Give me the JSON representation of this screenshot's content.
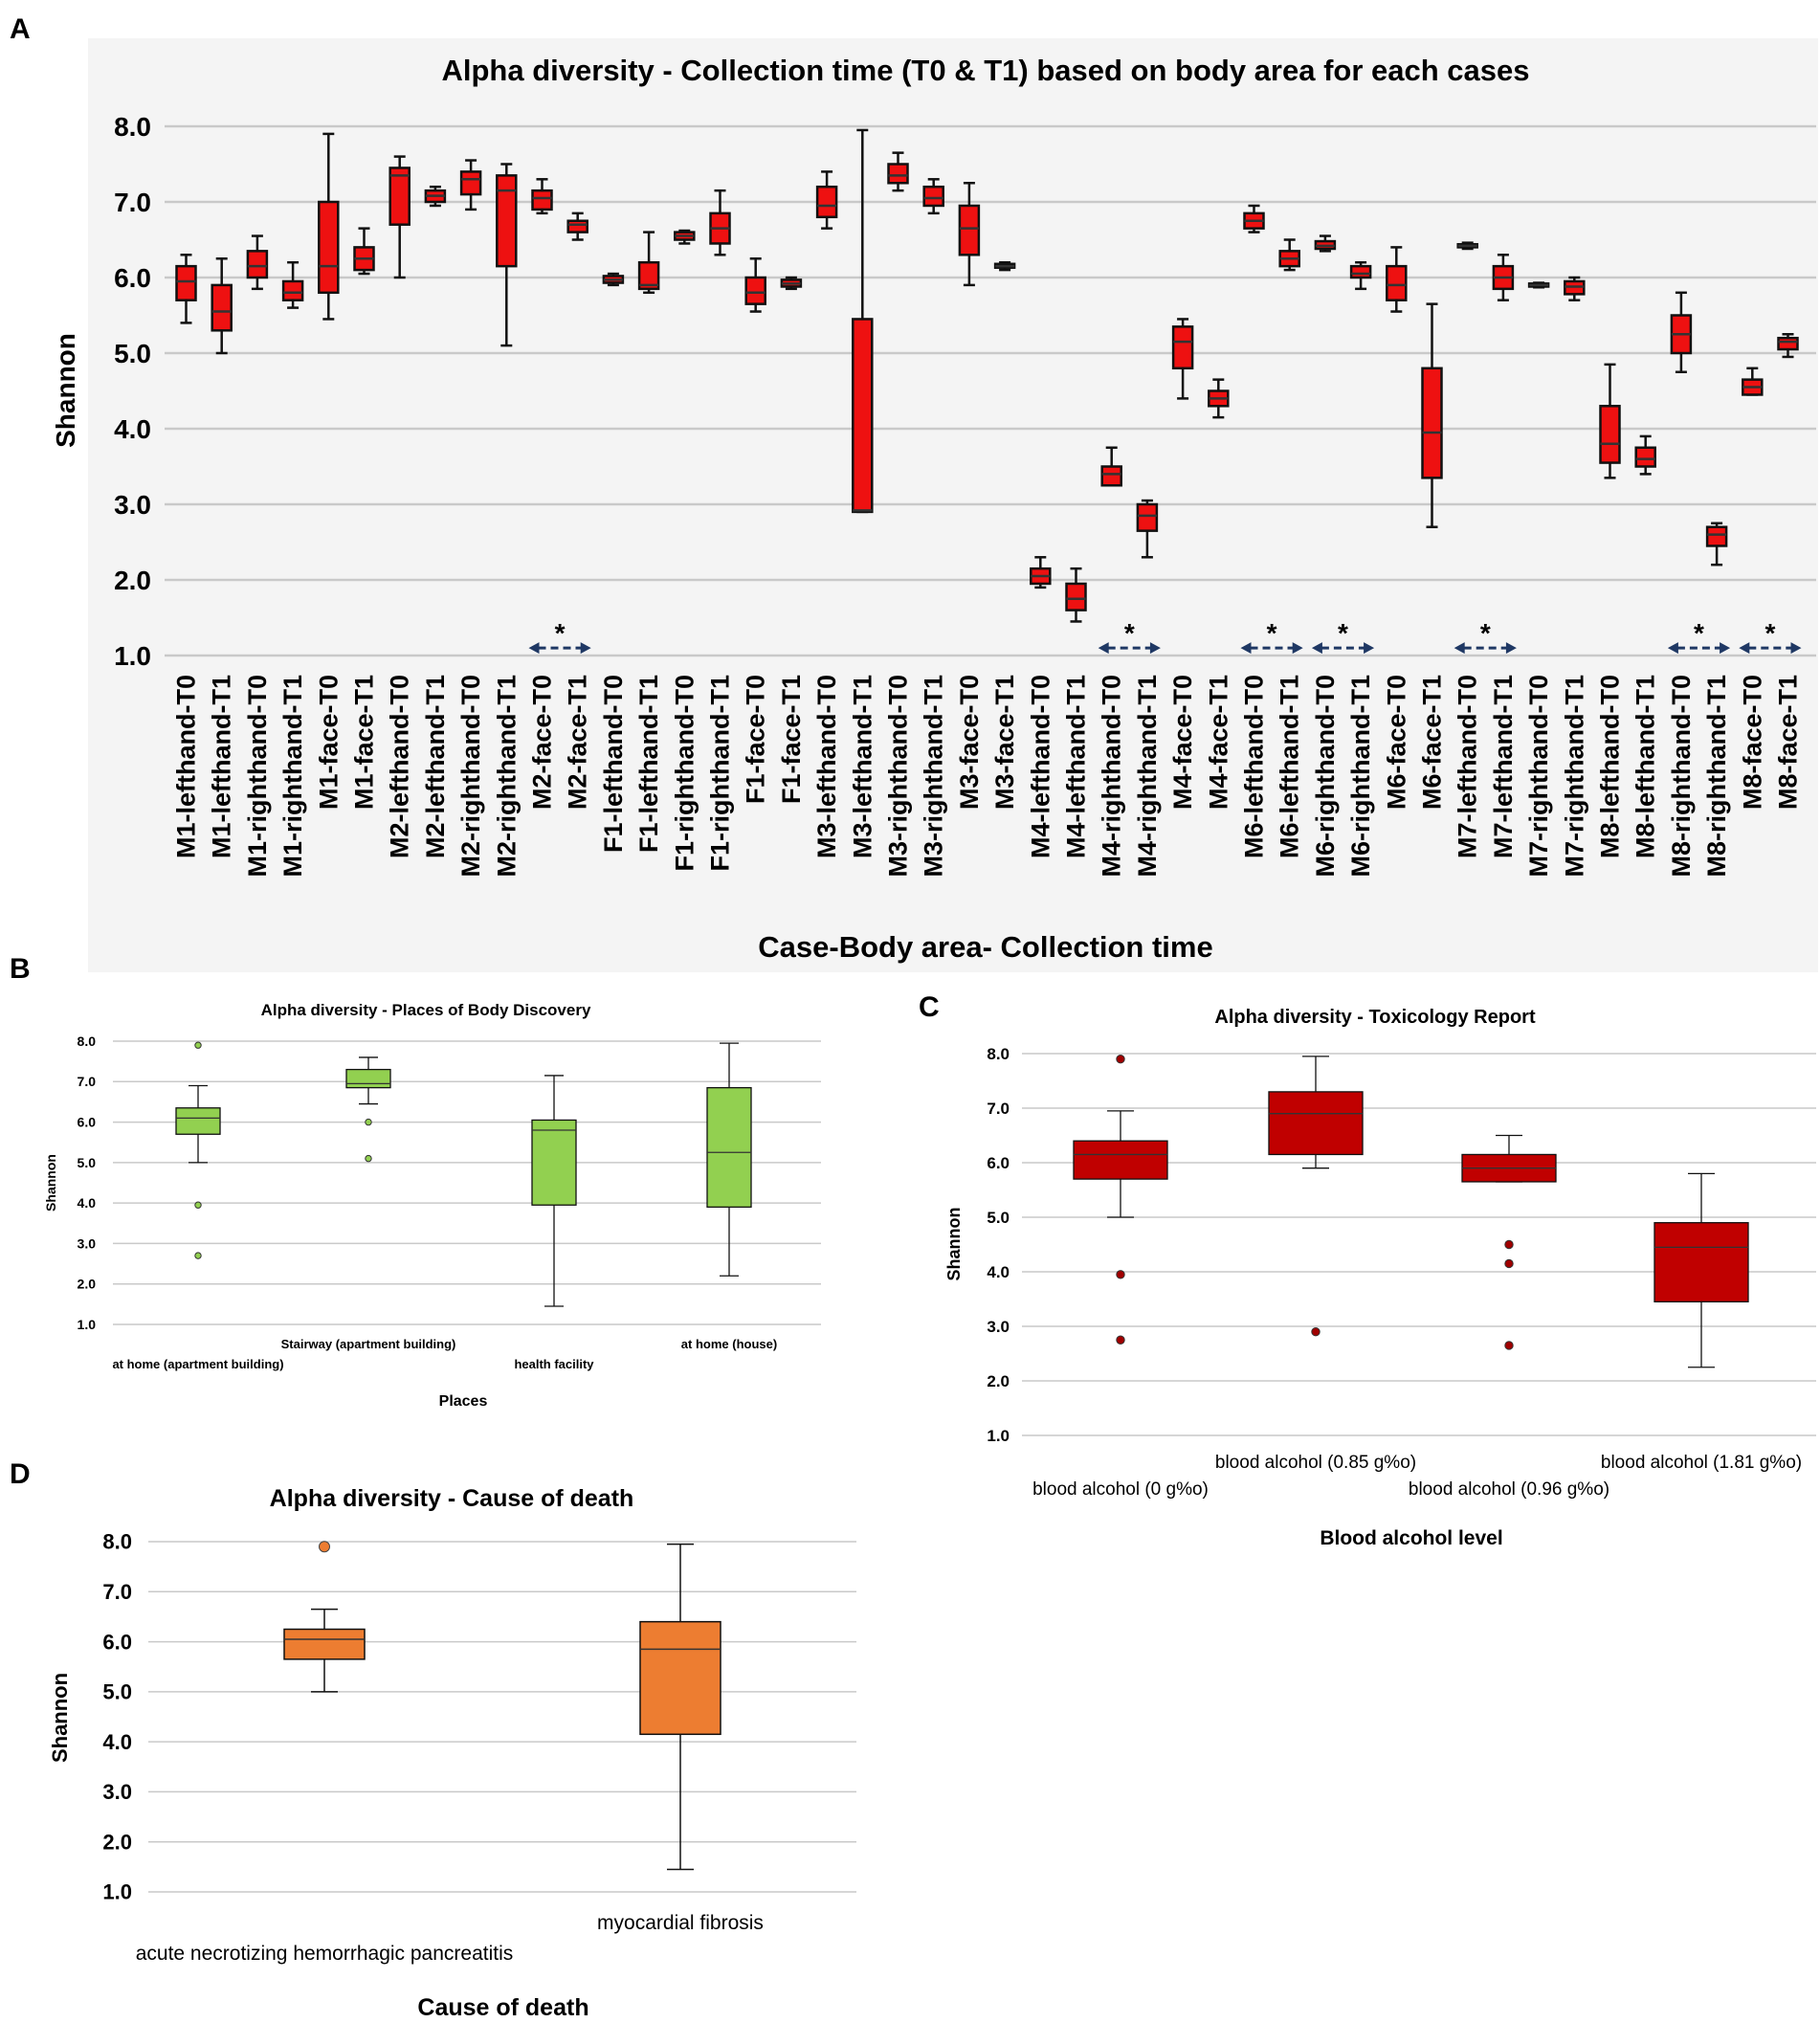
{
  "colors": {
    "panel_a_box": "#ee1111",
    "panel_b_box": "#92d050",
    "panel_c_box": "#c00000",
    "panel_d_box": "#ed7d31",
    "outlier_a_c": "#a00000",
    "outlier_b": "#92d050",
    "outlier_d": "#ed7d31",
    "grid": "#c9c9c9",
    "arrow": "#1f3864",
    "panel_a_bg": "#f4f4f4"
  },
  "chart_data": [
    {
      "panel": "A",
      "type": "box",
      "title": "Alpha diversity - Collection time (T0 & T1) based on body area for each cases",
      "xlabel": "Case-Body area- Collection time",
      "ylabel": "Shannon",
      "ylim": [
        1.0,
        8.0
      ],
      "yticks": [
        "1.0",
        "2.0",
        "3.0",
        "4.0",
        "5.0",
        "6.0",
        "7.0",
        "8.0"
      ],
      "significance_marker": "*",
      "significance_pairs": [
        [
          "M2-face-T0",
          "M2-face-T1"
        ],
        [
          "M4-righthand-T0",
          "M4-righthand-T1"
        ],
        [
          "M6-lefthand-T0",
          "M6-lefthand-T1"
        ],
        [
          "M6-righthand-T0",
          "M6-righthand-T1"
        ],
        [
          "M7-lefthand-T0",
          "M7-lefthand-T1"
        ],
        [
          "M8-righthand-T0",
          "M8-righthand-T1"
        ],
        [
          "M8-face-T0",
          "M8-face-T1"
        ]
      ],
      "boxes": [
        {
          "label": "M1-lefthand-T0",
          "min": 5.4,
          "q1": 5.7,
          "median": 5.95,
          "q3": 6.15,
          "max": 6.3
        },
        {
          "label": "M1-lefthand-T1",
          "min": 5.0,
          "q1": 5.3,
          "median": 5.55,
          "q3": 5.9,
          "max": 6.25
        },
        {
          "label": "M1-righthand-T0",
          "min": 5.85,
          "q1": 6.0,
          "median": 6.15,
          "q3": 6.35,
          "max": 6.55
        },
        {
          "label": "M1-righthand-T1",
          "min": 5.6,
          "q1": 5.7,
          "median": 5.8,
          "q3": 5.95,
          "max": 6.2
        },
        {
          "label": "M1-face-T0",
          "min": 5.45,
          "q1": 5.8,
          "median": 6.15,
          "q3": 7.0,
          "max": 7.9
        },
        {
          "label": "M1-face-T1",
          "min": 6.05,
          "q1": 6.1,
          "median": 6.25,
          "q3": 6.4,
          "max": 6.65
        },
        {
          "label": "M2-lefthand-T0",
          "min": 6.0,
          "q1": 6.7,
          "median": 7.35,
          "q3": 7.45,
          "max": 7.6
        },
        {
          "label": "M2-lefthand-T1",
          "min": 6.95,
          "q1": 7.0,
          "median": 7.08,
          "q3": 7.15,
          "max": 7.2
        },
        {
          "label": "M2-righthand-T0",
          "min": 6.9,
          "q1": 7.1,
          "median": 7.3,
          "q3": 7.4,
          "max": 7.55
        },
        {
          "label": "M2-righthand-T1",
          "min": 5.1,
          "q1": 6.15,
          "median": 7.15,
          "q3": 7.35,
          "max": 7.5
        },
        {
          "label": "M2-face-T0",
          "min": 6.85,
          "q1": 6.9,
          "median": 7.05,
          "q3": 7.15,
          "max": 7.3
        },
        {
          "label": "M2-face-T1",
          "min": 6.5,
          "q1": 6.6,
          "median": 6.7,
          "q3": 6.75,
          "max": 6.85
        },
        {
          "label": "F1-lefthand-T0",
          "min": 5.9,
          "q1": 5.93,
          "median": 5.97,
          "q3": 6.02,
          "max": 6.05
        },
        {
          "label": "F1-lefthand-T1",
          "min": 5.8,
          "q1": 5.85,
          "median": 5.9,
          "q3": 6.2,
          "max": 6.6
        },
        {
          "label": "F1-righthand-T0",
          "min": 6.45,
          "q1": 6.5,
          "median": 6.55,
          "q3": 6.6,
          "max": 6.62
        },
        {
          "label": "F1-righthand-T1",
          "min": 6.3,
          "q1": 6.45,
          "median": 6.65,
          "q3": 6.85,
          "max": 7.15
        },
        {
          "label": "F1-face-T0",
          "min": 5.55,
          "q1": 5.65,
          "median": 5.8,
          "q3": 6.0,
          "max": 6.25
        },
        {
          "label": "F1-face-T1",
          "min": 5.85,
          "q1": 5.88,
          "median": 5.92,
          "q3": 5.97,
          "max": 6.0
        },
        {
          "label": "M3-lefthand-T0",
          "min": 6.65,
          "q1": 6.8,
          "median": 6.95,
          "q3": 7.2,
          "max": 7.4
        },
        {
          "label": "M3-lefthand-T1",
          "min": 2.9,
          "q1": 2.9,
          "median": 2.92,
          "q3": 5.45,
          "max": 7.95
        },
        {
          "label": "M3-righthand-T0",
          "min": 7.15,
          "q1": 7.25,
          "median": 7.35,
          "q3": 7.5,
          "max": 7.65
        },
        {
          "label": "M3-righthand-T1",
          "min": 6.85,
          "q1": 6.95,
          "median": 7.05,
          "q3": 7.2,
          "max": 7.3
        },
        {
          "label": "M3-face-T0",
          "min": 5.9,
          "q1": 6.3,
          "median": 6.65,
          "q3": 6.95,
          "max": 7.25
        },
        {
          "label": "M3-face-T1",
          "min": 6.1,
          "q1": 6.13,
          "median": 6.15,
          "q3": 6.18,
          "max": 6.2
        },
        {
          "label": "M4-lefthand-T0",
          "min": 1.9,
          "q1": 1.95,
          "median": 2.05,
          "q3": 2.15,
          "max": 2.3
        },
        {
          "label": "M4-lefthand-T1",
          "min": 1.45,
          "q1": 1.6,
          "median": 1.75,
          "q3": 1.95,
          "max": 2.15
        },
        {
          "label": "M4-righthand-T0",
          "min": 3.25,
          "q1": 3.25,
          "median": 3.4,
          "q3": 3.5,
          "max": 3.75
        },
        {
          "label": "M4-righthand-T1",
          "min": 2.3,
          "q1": 2.65,
          "median": 2.85,
          "q3": 3.0,
          "max": 3.05
        },
        {
          "label": "M4-face-T0",
          "min": 4.4,
          "q1": 4.8,
          "median": 5.15,
          "q3": 5.35,
          "max": 5.45
        },
        {
          "label": "M4-face-T1",
          "min": 4.15,
          "q1": 4.3,
          "median": 4.4,
          "q3": 4.5,
          "max": 4.65
        },
        {
          "label": "M6-lefthand-T0",
          "min": 6.6,
          "q1": 6.65,
          "median": 6.75,
          "q3": 6.85,
          "max": 6.95
        },
        {
          "label": "M6-lefthand-T1",
          "min": 6.1,
          "q1": 6.15,
          "median": 6.25,
          "q3": 6.35,
          "max": 6.5
        },
        {
          "label": "M6-righthand-T0",
          "min": 6.35,
          "q1": 6.38,
          "median": 6.42,
          "q3": 6.48,
          "max": 6.55
        },
        {
          "label": "M6-righthand-T1",
          "min": 5.85,
          "q1": 6.0,
          "median": 6.05,
          "q3": 6.15,
          "max": 6.2
        },
        {
          "label": "M6-face-T0",
          "min": 5.55,
          "q1": 5.7,
          "median": 5.9,
          "q3": 6.15,
          "max": 6.4
        },
        {
          "label": "M6-face-T1",
          "min": 2.7,
          "q1": 3.35,
          "median": 3.95,
          "q3": 4.8,
          "max": 5.65
        },
        {
          "label": "M7-lefthand-T0",
          "min": 6.38,
          "q1": 6.4,
          "median": 6.42,
          "q3": 6.44,
          "max": 6.46
        },
        {
          "label": "M7-lefthand-T1",
          "min": 5.7,
          "q1": 5.85,
          "median": 6.0,
          "q3": 6.15,
          "max": 6.3
        },
        {
          "label": "M7-righthand-T0",
          "min": 5.87,
          "q1": 5.88,
          "median": 5.9,
          "q3": 5.92,
          "max": 5.93
        },
        {
          "label": "M7-righthand-T1",
          "min": 5.7,
          "q1": 5.78,
          "median": 5.88,
          "q3": 5.95,
          "max": 6.0
        },
        {
          "label": "M8-lefthand-T0",
          "min": 3.35,
          "q1": 3.55,
          "median": 3.8,
          "q3": 4.3,
          "max": 4.85
        },
        {
          "label": "M8-lefthand-T1",
          "min": 3.4,
          "q1": 3.5,
          "median": 3.6,
          "q3": 3.75,
          "max": 3.9
        },
        {
          "label": "M8-righthand-T0",
          "min": 4.75,
          "q1": 5.0,
          "median": 5.25,
          "q3": 5.5,
          "max": 5.8
        },
        {
          "label": "M8-righthand-T1",
          "min": 2.2,
          "q1": 2.45,
          "median": 2.6,
          "q3": 2.7,
          "max": 2.75
        },
        {
          "label": "M8-face-T0",
          "min": 4.45,
          "q1": 4.45,
          "median": 4.55,
          "q3": 4.65,
          "max": 4.8
        },
        {
          "label": "M8-face-T1",
          "min": 4.95,
          "q1": 5.05,
          "median": 5.15,
          "q3": 5.2,
          "max": 5.25
        }
      ]
    },
    {
      "panel": "B",
      "type": "box",
      "title": "Alpha diversity - Places of Body Discovery",
      "xlabel": "Places",
      "ylabel": "Shannon",
      "ylim": [
        1.0,
        8.0
      ],
      "yticks": [
        "1.0",
        "2.0",
        "3.0",
        "4.0",
        "5.0",
        "6.0",
        "7.0",
        "8.0"
      ],
      "boxes": [
        {
          "label": "at home (apartment building)",
          "min": 5.0,
          "q1": 5.7,
          "median": 6.1,
          "q3": 6.35,
          "max": 6.9,
          "outliers": [
            7.9,
            3.95,
            2.7
          ]
        },
        {
          "label": "Stairway (apartment building)",
          "min": 6.45,
          "q1": 6.85,
          "median": 6.95,
          "q3": 7.3,
          "max": 7.6,
          "outliers": [
            6.0,
            5.1
          ]
        },
        {
          "label": "health facility",
          "min": 1.45,
          "q1": 3.95,
          "median": 5.8,
          "q3": 6.05,
          "max": 7.15,
          "outliers": []
        },
        {
          "label": "at home (house)",
          "min": 2.2,
          "q1": 3.9,
          "median": 5.25,
          "q3": 6.85,
          "max": 7.95,
          "outliers": []
        }
      ]
    },
    {
      "panel": "C",
      "type": "box",
      "title": "Alpha diversity - Toxicology Report",
      "xlabel": "Blood alcohol level",
      "ylabel": "Shannon",
      "ylim": [
        1.0,
        8.0
      ],
      "yticks": [
        "1.0",
        "2.0",
        "3.0",
        "4.0",
        "5.0",
        "6.0",
        "7.0",
        "8.0"
      ],
      "boxes": [
        {
          "label": "blood alcohol (0 g%o)",
          "min": 5.0,
          "q1": 5.7,
          "median": 6.15,
          "q3": 6.4,
          "max": 6.95,
          "outliers": [
            7.9,
            3.95,
            2.75
          ]
        },
        {
          "label": "blood alcohol (0.85 g%o)",
          "min": 5.9,
          "q1": 6.15,
          "median": 6.9,
          "q3": 7.3,
          "max": 7.95,
          "outliers": [
            2.9
          ]
        },
        {
          "label": "blood alcohol (0.96 g%o)",
          "min": 5.65,
          "q1": 5.65,
          "median": 5.9,
          "q3": 6.15,
          "max": 6.5,
          "outliers": [
            4.5,
            4.15,
            2.65
          ]
        },
        {
          "label": "blood alcohol (1.81 g%o)",
          "min": 2.25,
          "q1": 3.45,
          "median": 4.45,
          "q3": 4.9,
          "max": 5.8,
          "outliers": []
        }
      ]
    },
    {
      "panel": "D",
      "type": "box",
      "title": "Alpha diversity - Cause of death",
      "xlabel": "Cause of death",
      "ylabel": "Shannon",
      "ylim": [
        1.0,
        8.0
      ],
      "yticks": [
        "1.0",
        "2.0",
        "3.0",
        "4.0",
        "5.0",
        "6.0",
        "7.0",
        "8.0"
      ],
      "boxes": [
        {
          "label": "acute necrotizing hemorrhagic pancreatitis",
          "min": 5.0,
          "q1": 5.65,
          "median": 6.05,
          "q3": 6.25,
          "max": 6.65,
          "outliers": [
            7.9
          ]
        },
        {
          "label": "myocardial fibrosis",
          "min": 1.45,
          "q1": 4.15,
          "median": 5.85,
          "q3": 6.4,
          "max": 7.95,
          "outliers": []
        }
      ]
    }
  ]
}
